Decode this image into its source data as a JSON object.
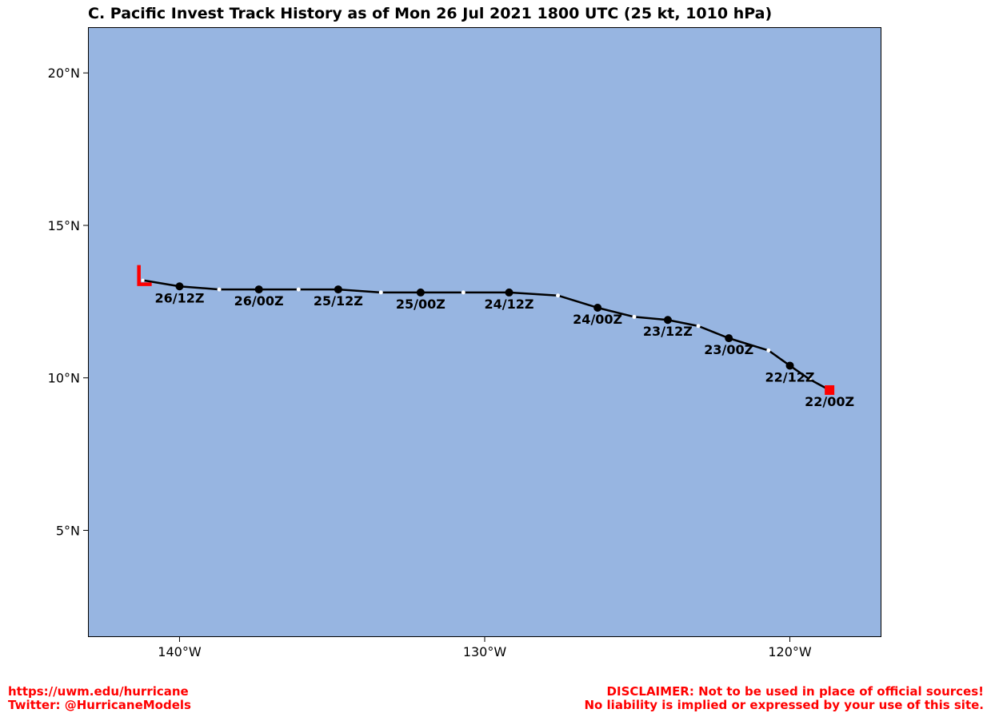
{
  "title": "C. Pacific Invest Track History as of Mon 26 Jul 2021 1800 UTC (25 kt, 1010 hPa)",
  "colors": {
    "ocean": "#97b5e1",
    "track": "#000000",
    "synoptic_marker": "#000000",
    "intermediate_marker": "#ffffff",
    "genesis_marker": "#ff0000",
    "current_symbol": "#ff0000",
    "footer_text": "#ff0000"
  },
  "map": {
    "lon_range": [
      -143.0,
      -117.0
    ],
    "lat_range": [
      1.5,
      21.5
    ],
    "lon_ticks": [
      {
        "value": -140,
        "label": "140°W"
      },
      {
        "value": -130,
        "label": "130°W"
      },
      {
        "value": -120,
        "label": "120°W"
      }
    ],
    "lat_ticks": [
      {
        "value": 5,
        "label": "5°N"
      },
      {
        "value": 10,
        "label": "10°N"
      },
      {
        "value": 15,
        "label": "15°N"
      },
      {
        "value": 20,
        "label": "20°N"
      }
    ]
  },
  "track": {
    "points": [
      {
        "lon": -118.7,
        "lat": 9.6,
        "type": "genesis",
        "label": "22/00Z"
      },
      {
        "lon": -119.35,
        "lat": 9.95,
        "type": "intermediate"
      },
      {
        "lon": -120.0,
        "lat": 10.4,
        "type": "synoptic",
        "label": "22/12Z"
      },
      {
        "lon": -120.7,
        "lat": 10.9,
        "type": "intermediate"
      },
      {
        "lon": -122.0,
        "lat": 11.3,
        "type": "synoptic",
        "label": "23/00Z"
      },
      {
        "lon": -123.0,
        "lat": 11.7,
        "type": "intermediate"
      },
      {
        "lon": -124.0,
        "lat": 11.9,
        "type": "synoptic",
        "label": "23/12Z"
      },
      {
        "lon": -125.1,
        "lat": 12.0,
        "type": "intermediate"
      },
      {
        "lon": -126.3,
        "lat": 12.3,
        "type": "synoptic",
        "label": "24/00Z"
      },
      {
        "lon": -127.6,
        "lat": 12.7,
        "type": "intermediate"
      },
      {
        "lon": -129.2,
        "lat": 12.8,
        "type": "synoptic",
        "label": "24/12Z"
      },
      {
        "lon": -130.7,
        "lat": 12.8,
        "type": "intermediate"
      },
      {
        "lon": -132.1,
        "lat": 12.8,
        "type": "synoptic",
        "label": "25/00Z"
      },
      {
        "lon": -133.4,
        "lat": 12.8,
        "type": "intermediate"
      },
      {
        "lon": -134.8,
        "lat": 12.9,
        "type": "synoptic",
        "label": "25/12Z"
      },
      {
        "lon": -136.1,
        "lat": 12.9,
        "type": "intermediate"
      },
      {
        "lon": -137.4,
        "lat": 12.9,
        "type": "synoptic",
        "label": "26/00Z"
      },
      {
        "lon": -138.7,
        "lat": 12.9,
        "type": "intermediate"
      },
      {
        "lon": -140.0,
        "lat": 13.0,
        "type": "synoptic",
        "label": "26/12Z"
      },
      {
        "lon": -141.2,
        "lat": 13.2,
        "type": "current"
      }
    ],
    "current_symbol": "L"
  },
  "footer": {
    "left_line1": "https://uwm.edu/hurricane",
    "left_line2": "Twitter: @HurricaneModels",
    "right_line1": "DISCLAIMER: Not to be used in place of official sources!",
    "right_line2": "No liability is implied or expressed by your use of this site."
  }
}
